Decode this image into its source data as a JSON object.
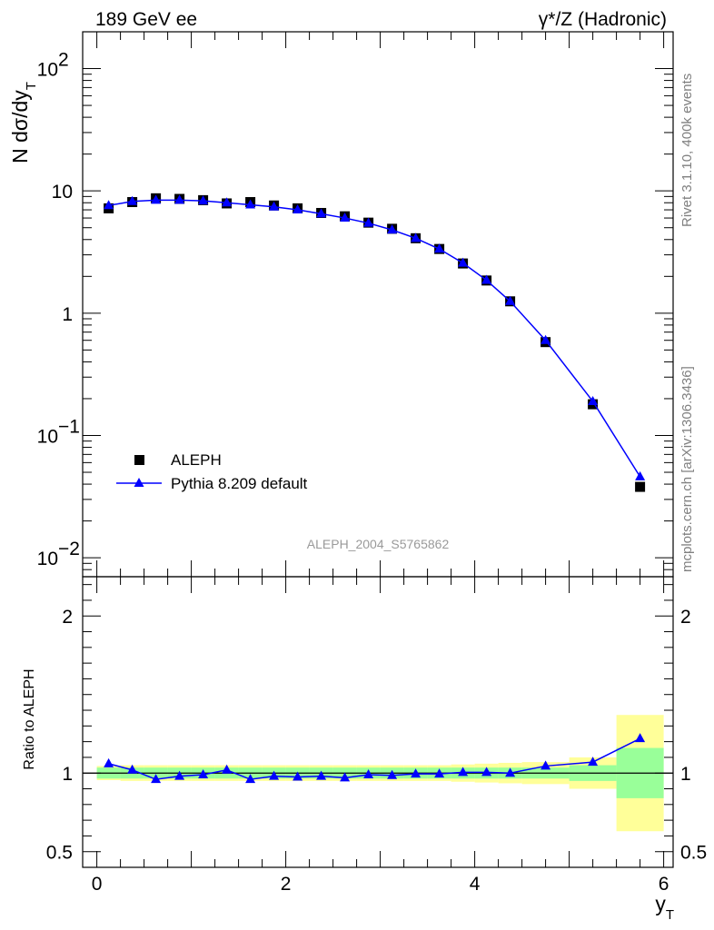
{
  "header": {
    "left": "189 GeV ee",
    "right": "γ*/Z (Hadronic)"
  },
  "side_labels": {
    "top": "Rivet 3.1.10,  400k events",
    "bottom": "mcplots.cern.ch [arXiv:1306.3436]"
  },
  "analysis_label": "ALEPH_2004_S5765862",
  "colors": {
    "data": "#000000",
    "mc": "#0000ff",
    "band_inner": "#99ff99",
    "band_outer": "#ffff99",
    "frame": "#000000",
    "side_text": "#808080"
  },
  "chart_data": [
    {
      "type": "scatter",
      "panel": "main",
      "ylabel": "N dσ/dy_T",
      "yscale": "log",
      "ylim": [
        0.007,
        200
      ],
      "xlim": [
        -0.15,
        6.1
      ],
      "yticks": [
        {
          "v": 0.01,
          "base": "10",
          "exp": "−2"
        },
        {
          "v": 0.1,
          "base": "10",
          "exp": "−1"
        },
        {
          "v": 1,
          "base": "1",
          "exp": ""
        },
        {
          "v": 10,
          "base": "10",
          "exp": ""
        },
        {
          "v": 100,
          "base": "10",
          "exp": "2"
        }
      ],
      "legend_position": "lower-left",
      "series": [
        {
          "name": "ALEPH",
          "marker": "square",
          "x": [
            0.125,
            0.375,
            0.625,
            0.875,
            1.125,
            1.375,
            1.625,
            1.875,
            2.125,
            2.375,
            2.625,
            2.875,
            3.125,
            3.375,
            3.625,
            3.875,
            4.125,
            4.375,
            4.75,
            5.25,
            5.75
          ],
          "values": [
            7.2,
            8.1,
            8.7,
            8.6,
            8.4,
            7.9,
            8.1,
            7.6,
            7.2,
            6.6,
            6.2,
            5.5,
            4.9,
            4.1,
            3.35,
            2.55,
            1.85,
            1.25,
            0.58,
            0.18,
            0.038
          ]
        },
        {
          "name": "Pythia 8.209 default",
          "marker": "triangle",
          "x": [
            0.125,
            0.375,
            0.625,
            0.875,
            1.125,
            1.375,
            1.625,
            1.875,
            2.125,
            2.375,
            2.625,
            2.875,
            3.125,
            3.375,
            3.625,
            3.875,
            4.125,
            4.375,
            4.75,
            5.25,
            5.75
          ],
          "values": [
            7.6,
            8.2,
            8.4,
            8.4,
            8.3,
            8.0,
            7.7,
            7.4,
            7.0,
            6.5,
            6.0,
            5.45,
            4.8,
            4.1,
            3.35,
            2.57,
            1.86,
            1.25,
            0.6,
            0.19,
            0.046
          ]
        }
      ]
    },
    {
      "type": "line",
      "panel": "ratio",
      "ylabel": "Ratio to ALEPH",
      "xlabel": "y_T",
      "ylim": [
        0.4,
        2.25
      ],
      "xlim": [
        -0.15,
        6.1
      ],
      "yticks": [
        0.5,
        1,
        2
      ],
      "xticks": [
        0,
        2,
        4,
        6
      ],
      "bins": [
        0.0,
        0.25,
        0.5,
        0.75,
        1.0,
        1.25,
        1.5,
        1.75,
        2.0,
        2.25,
        2.5,
        2.75,
        3.0,
        3.25,
        3.5,
        3.75,
        4.0,
        4.25,
        4.5,
        5.0,
        5.5,
        6.0
      ],
      "stat_band": [
        0.035,
        0.035,
        0.035,
        0.035,
        0.035,
        0.035,
        0.035,
        0.035,
        0.035,
        0.035,
        0.035,
        0.035,
        0.035,
        0.035,
        0.035,
        0.035,
        0.035,
        0.035,
        0.035,
        0.05,
        0.16
      ],
      "total_band": [
        0.045,
        0.05,
        0.05,
        0.05,
        0.05,
        0.05,
        0.05,
        0.05,
        0.05,
        0.05,
        0.05,
        0.05,
        0.05,
        0.05,
        0.05,
        0.055,
        0.06,
        0.065,
        0.07,
        0.1,
        0.37
      ],
      "series": [
        {
          "name": "Pythia 8.209 default",
          "x": [
            0.125,
            0.375,
            0.625,
            0.875,
            1.125,
            1.375,
            1.625,
            1.875,
            2.125,
            2.375,
            2.625,
            2.875,
            3.125,
            3.375,
            3.625,
            3.875,
            4.125,
            4.375,
            4.75,
            5.25,
            5.75
          ],
          "values": [
            1.06,
            1.02,
            0.96,
            0.98,
            0.99,
            1.02,
            0.96,
            0.98,
            0.975,
            0.98,
            0.97,
            0.99,
            0.985,
            0.995,
            0.995,
            1.005,
            1.005,
            1.0,
            1.045,
            1.07,
            1.22
          ]
        }
      ]
    }
  ]
}
